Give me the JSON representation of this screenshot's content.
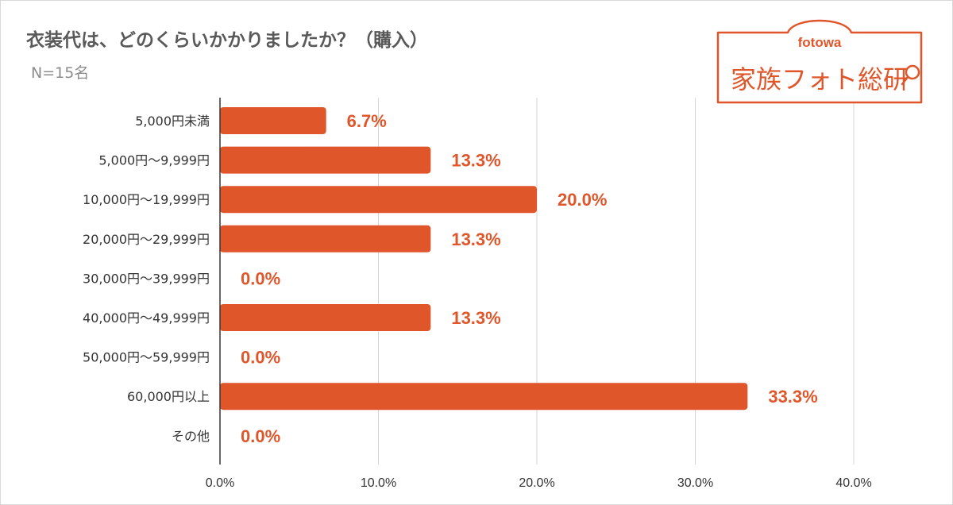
{
  "header": {
    "title": "衣装代は、どのくらいかかりましたか？（購入）",
    "subtitle": "N=15名"
  },
  "logo": {
    "brand": "fotowa",
    "name": "家族フォト総研",
    "color": "#e0562b"
  },
  "colors": {
    "bar": "#e0562b",
    "value_label": "#e0562b",
    "grid": "#d6d6d6",
    "text": "#333333"
  },
  "chart_data": {
    "type": "bar",
    "orientation": "horizontal",
    "title": "衣装代は、どのくらいかかりましたか？（購入）",
    "subtitle": "N=15名",
    "categories": [
      "5,000円未満",
      "5,000円～9,999円",
      "10,000円～19,999円",
      "20,000円～29,999円",
      "30,000円～39,999円",
      "40,000円～49,999円",
      "50,000円～59,999円",
      "60,000円以上",
      "その他"
    ],
    "values": [
      6.7,
      13.3,
      20.0,
      13.3,
      0.0,
      13.3,
      0.0,
      33.3,
      0.0
    ],
    "value_labels": [
      "6.7%",
      "13.3%",
      "20.0%",
      "13.3%",
      "0.0%",
      "13.3%",
      "0.0%",
      "33.3%",
      "0.0%"
    ],
    "xlim": [
      0,
      40
    ],
    "x_ticks": [
      0,
      10,
      20,
      30,
      40
    ],
    "x_tick_labels": [
      "0.0%",
      "10.0%",
      "20.0%",
      "30.0%",
      "40.0%"
    ],
    "xlabel": "",
    "ylabel": "",
    "grid": true,
    "legend": "none"
  }
}
